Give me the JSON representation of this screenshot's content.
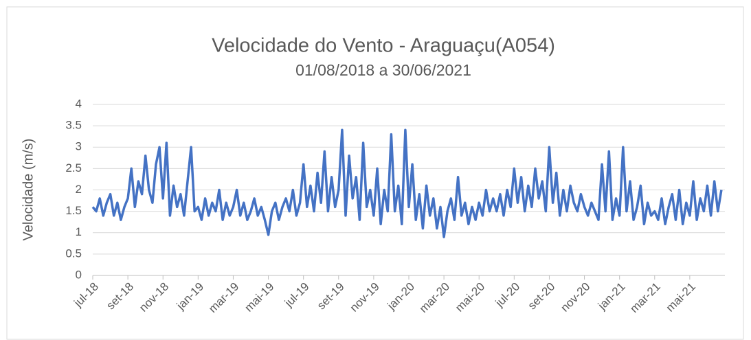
{
  "chart_data": {
    "type": "line",
    "title": "Velocidade do Vento - Araguaçu(A054)",
    "subtitle": "01/08/2018 a 30/06/2021",
    "y_label": "Velocidade (m/s)",
    "categories": [
      "jul-18",
      null,
      null,
      null,
      null,
      null,
      null,
      null,
      null,
      null,
      "set-18",
      null,
      null,
      null,
      null,
      null,
      null,
      null,
      null,
      null,
      "nov-18",
      null,
      null,
      null,
      null,
      null,
      null,
      null,
      null,
      null,
      "jan-19",
      null,
      null,
      null,
      null,
      null,
      null,
      null,
      null,
      null,
      "mar-19",
      null,
      null,
      null,
      null,
      null,
      null,
      null,
      null,
      null,
      "mai-19",
      null,
      null,
      null,
      null,
      null,
      null,
      null,
      null,
      null,
      "jul-19",
      null,
      null,
      null,
      null,
      null,
      null,
      null,
      null,
      null,
      "set-19",
      null,
      null,
      null,
      null,
      null,
      null,
      null,
      null,
      null,
      "nov-19",
      null,
      null,
      null,
      null,
      null,
      null,
      null,
      null,
      null,
      "jan-20",
      null,
      null,
      null,
      null,
      null,
      null,
      null,
      null,
      null,
      "mar-20",
      null,
      null,
      null,
      null,
      null,
      null,
      null,
      null,
      null,
      "mai-20",
      null,
      null,
      null,
      null,
      null,
      null,
      null,
      null,
      null,
      "jul-20",
      null,
      null,
      null,
      null,
      null,
      null,
      null,
      null,
      null,
      "set-20",
      null,
      null,
      null,
      null,
      null,
      null,
      null,
      null,
      null,
      "nov-20",
      null,
      null,
      null,
      null,
      null,
      null,
      null,
      null,
      null,
      "jan-21",
      null,
      null,
      null,
      null,
      null,
      null,
      null,
      null,
      null,
      "mar-21",
      null,
      null,
      null,
      null,
      null,
      null,
      null,
      null,
      null,
      "mai-21",
      null,
      null,
      null,
      null,
      null,
      null,
      null,
      null,
      null
    ],
    "series": [
      {
        "name": "Velocidade",
        "color": "#4472c4",
        "values": [
          1.6,
          1.5,
          1.8,
          1.4,
          1.7,
          1.9,
          1.4,
          1.7,
          1.3,
          1.6,
          1.8,
          2.5,
          1.6,
          2.2,
          1.9,
          2.8,
          2.0,
          1.7,
          2.6,
          3.0,
          1.8,
          3.1,
          1.4,
          2.1,
          1.6,
          1.9,
          1.4,
          2.2,
          3.0,
          1.5,
          1.6,
          1.3,
          1.8,
          1.4,
          1.7,
          1.5,
          2.0,
          1.3,
          1.7,
          1.4,
          1.6,
          2.0,
          1.4,
          1.7,
          1.3,
          1.5,
          1.8,
          1.4,
          1.6,
          1.3,
          0.95,
          1.5,
          1.7,
          1.3,
          1.6,
          1.8,
          1.5,
          2.0,
          1.4,
          1.7,
          2.6,
          1.6,
          2.1,
          1.5,
          2.4,
          1.7,
          2.9,
          1.5,
          2.3,
          1.6,
          2.0,
          3.4,
          1.4,
          2.8,
          1.8,
          2.3,
          1.3,
          3.1,
          1.6,
          2.0,
          1.4,
          2.5,
          1.2,
          2.0,
          1.5,
          3.3,
          1.5,
          2.1,
          1.2,
          3.4,
          1.6,
          2.6,
          1.3,
          1.9,
          1.1,
          2.1,
          1.4,
          1.8,
          1.1,
          1.6,
          0.9,
          1.5,
          1.8,
          1.3,
          2.3,
          1.4,
          1.7,
          1.2,
          1.6,
          1.3,
          1.7,
          1.4,
          2.0,
          1.5,
          1.8,
          1.5,
          1.9,
          1.4,
          2.0,
          1.6,
          2.5,
          1.7,
          2.3,
          1.5,
          2.1,
          1.6,
          2.5,
          1.8,
          2.2,
          1.5,
          3.0,
          1.7,
          2.4,
          1.4,
          2.0,
          1.5,
          2.1,
          1.7,
          1.5,
          1.9,
          1.6,
          1.4,
          1.7,
          1.5,
          1.3,
          2.6,
          1.5,
          2.9,
          1.3,
          1.8,
          1.4,
          3.0,
          1.5,
          2.2,
          1.3,
          1.6,
          2.1,
          1.2,
          1.7,
          1.4,
          1.5,
          1.3,
          1.8,
          1.2,
          1.6,
          1.9,
          1.3,
          2.0,
          1.2,
          1.7,
          1.4,
          2.2,
          1.3,
          1.8,
          1.5,
          2.1,
          1.4,
          2.2,
          1.5,
          2.0
        ]
      }
    ],
    "ylim": [
      0,
      4
    ],
    "yticks": [
      0,
      0.5,
      1,
      1.5,
      2,
      2.5,
      3,
      3.5,
      4
    ],
    "grid": true
  }
}
